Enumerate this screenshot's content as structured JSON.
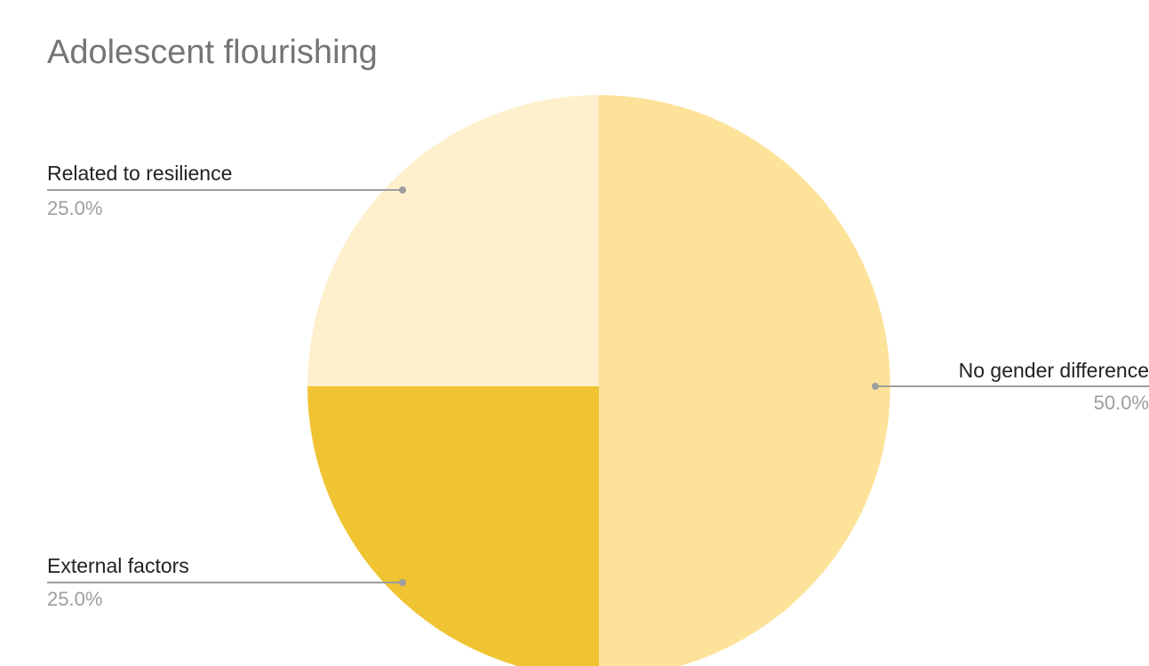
{
  "chart_data": {
    "type": "pie",
    "title": "Adolescent flourishing",
    "slices": [
      {
        "label": "No gender difference",
        "value": 50.0,
        "percent_label": "50.0%",
        "color": "#fde39a"
      },
      {
        "label": "External factors",
        "value": 25.0,
        "percent_label": "25.0%",
        "color": "#f0c332"
      },
      {
        "label": "Related to resilience",
        "value": 25.0,
        "percent_label": "25.0%",
        "color": "#fef0cc"
      }
    ],
    "start_angle": "12 o'clock",
    "direction": "clockwise",
    "legend": "none",
    "label_style": "leader-lines with label and percent"
  }
}
